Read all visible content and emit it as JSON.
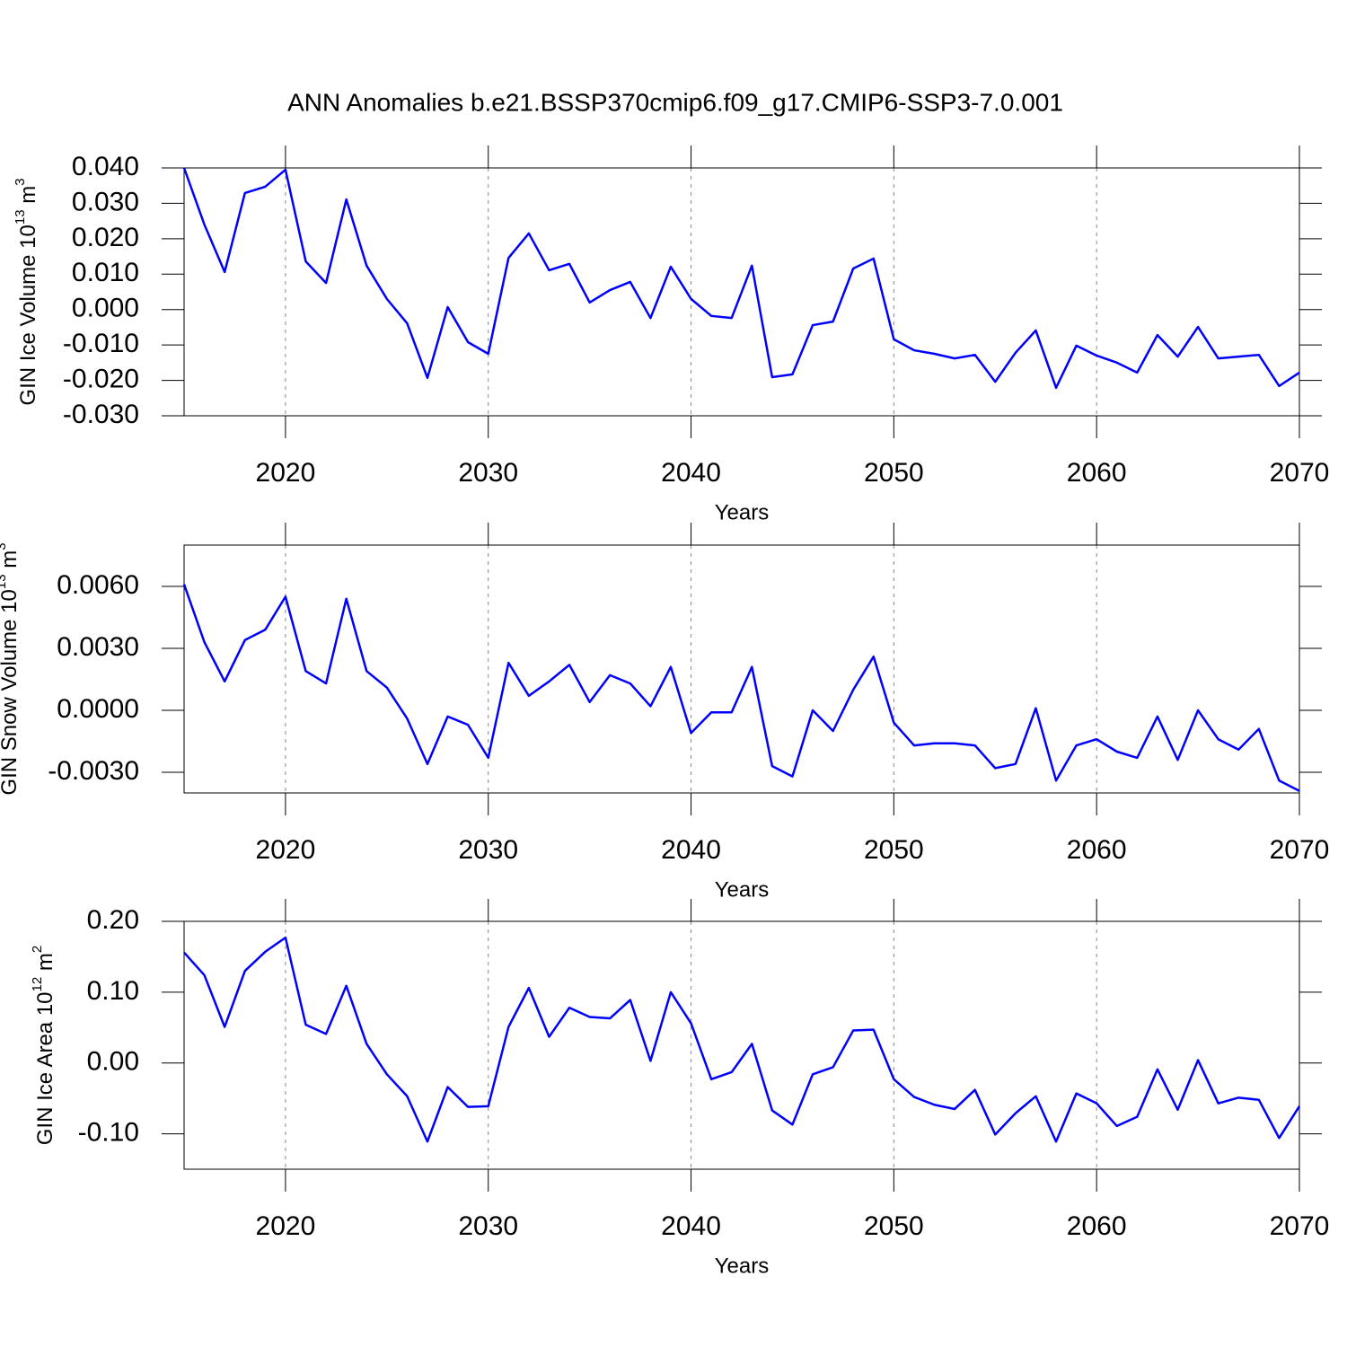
{
  "title": "ANN Anomalies b.e21.BSSP370cmip6.f09_g17.CMIP6-SSP3-7.0.001",
  "chart_data": [
    {
      "type": "line",
      "ylabel": [
        "GIN Ice Volume 10",
        "13",
        " m",
        "3"
      ],
      "xlabel": "Years",
      "color": "#0000ff",
      "grid": true,
      "x": [
        2015,
        2016,
        2017,
        2018,
        2019,
        2020,
        2021,
        2022,
        2023,
        2024,
        2025,
        2026,
        2027,
        2028,
        2029,
        2030,
        2031,
        2032,
        2033,
        2034,
        2035,
        2036,
        2037,
        2038,
        2039,
        2040,
        2041,
        2042,
        2043,
        2044,
        2045,
        2046,
        2047,
        2048,
        2049,
        2050,
        2051,
        2052,
        2053,
        2054,
        2055,
        2056,
        2057,
        2058,
        2059,
        2060,
        2061,
        2062,
        2063,
        2064,
        2065,
        2066,
        2067,
        2068,
        2069,
        2070
      ],
      "values": [
        0.04,
        0.024,
        0.0106,
        0.0329,
        0.0347,
        0.0395,
        0.0136,
        0.0075,
        0.0311,
        0.0124,
        0.003,
        -0.0039,
        -0.0193,
        0.0007,
        -0.0092,
        -0.0125,
        0.0146,
        0.0215,
        0.0111,
        0.0129,
        0.002,
        0.0055,
        0.0078,
        -0.0024,
        0.0121,
        0.003,
        -0.0018,
        -0.0024,
        0.0124,
        -0.0191,
        -0.0183,
        -0.0044,
        -0.0034,
        0.0116,
        0.0144,
        -0.0084,
        -0.0115,
        -0.0125,
        -0.0138,
        -0.0128,
        -0.0204,
        -0.0122,
        -0.0059,
        -0.0221,
        -0.0102,
        -0.013,
        -0.015,
        -0.0178,
        -0.0072,
        -0.0133,
        -0.0049,
        -0.0138,
        -0.0133,
        -0.0128,
        -0.0216,
        -0.0178
      ],
      "xlim": [
        2015,
        2070
      ],
      "xticks": [
        2020,
        2030,
        2040,
        2050,
        2060,
        2070
      ],
      "ylim": [
        -0.03,
        0.04
      ],
      "yticks": [
        {
          "value": 0.04,
          "label": "0.040"
        },
        {
          "value": 0.03,
          "label": "0.030"
        },
        {
          "value": 0.02,
          "label": "0.020"
        },
        {
          "value": 0.01,
          "label": "0.010"
        },
        {
          "value": 0,
          "label": "0.000"
        },
        {
          "value": -0.01,
          "label": "-0.010"
        },
        {
          "value": -0.02,
          "label": "-0.020"
        },
        {
          "value": -0.03,
          "label": "-0.030"
        }
      ]
    },
    {
      "type": "line",
      "ylabel": [
        "GIN Snow Volume 10",
        "13",
        " m",
        "3"
      ],
      "xlabel": "Years",
      "color": "#0000ff",
      "grid": true,
      "x": [
        2015,
        2016,
        2017,
        2018,
        2019,
        2020,
        2021,
        2022,
        2023,
        2024,
        2025,
        2026,
        2027,
        2028,
        2029,
        2030,
        2031,
        2032,
        2033,
        2034,
        2035,
        2036,
        2037,
        2038,
        2039,
        2040,
        2041,
        2042,
        2043,
        2044,
        2045,
        2046,
        2047,
        2048,
        2049,
        2050,
        2051,
        2052,
        2053,
        2054,
        2055,
        2056,
        2057,
        2058,
        2059,
        2060,
        2061,
        2062,
        2063,
        2064,
        2065,
        2066,
        2067,
        2068,
        2069,
        2070
      ],
      "values": [
        0.0061,
        0.0033,
        0.0014,
        0.0034,
        0.0039,
        0.0055,
        0.0019,
        0.0013,
        0.0054,
        0.0019,
        0.0011,
        -0.0004,
        -0.0026,
        -0.0003,
        -0.0007,
        -0.0023,
        0.0023,
        0.0007,
        0.0014,
        0.0022,
        0.0004,
        0.0017,
        0.0013,
        0.0002,
        0.0021,
        -0.0011,
        -0.0001,
        -0.0001,
        0.0021,
        -0.0027,
        -0.0032,
        0,
        -0.001,
        0.001,
        0.0026,
        -0.0006,
        -0.0017,
        -0.0016,
        -0.0016,
        -0.0017,
        -0.0028,
        -0.0026,
        0.0001,
        -0.0034,
        -0.0017,
        -0.0014,
        -0.002,
        -0.0023,
        -0.0003,
        -0.0024,
        0,
        -0.0014,
        -0.0019,
        -0.0009,
        -0.0034,
        -0.0039
      ],
      "xlim": [
        2015,
        2070
      ],
      "xticks": [
        2020,
        2030,
        2040,
        2050,
        2060,
        2070
      ],
      "ylim": [
        -0.004,
        0.008
      ],
      "yticks": [
        {
          "value": 0.006,
          "label": "0.0060"
        },
        {
          "value": 0.003,
          "label": "0.0030"
        },
        {
          "value": 0,
          "label": "0.0000"
        },
        {
          "value": -0.003,
          "label": "-0.0030"
        }
      ]
    },
    {
      "type": "line",
      "ylabel": [
        "GIN Ice Area 10",
        "12",
        " m",
        "2"
      ],
      "xlabel": "Years",
      "color": "#0000ff",
      "grid": true,
      "x": [
        2015,
        2016,
        2017,
        2018,
        2019,
        2020,
        2021,
        2022,
        2023,
        2024,
        2025,
        2026,
        2027,
        2028,
        2029,
        2030,
        2031,
        2032,
        2033,
        2034,
        2035,
        2036,
        2037,
        2038,
        2039,
        2040,
        2041,
        2042,
        2043,
        2044,
        2045,
        2046,
        2047,
        2048,
        2049,
        2050,
        2051,
        2052,
        2053,
        2054,
        2055,
        2056,
        2057,
        2058,
        2059,
        2060,
        2061,
        2062,
        2063,
        2064,
        2065,
        2066,
        2067,
        2068,
        2069,
        2070
      ],
      "values": [
        0.156,
        0.124,
        0.051,
        0.13,
        0.157,
        0.177,
        0.054,
        0.041,
        0.109,
        0.027,
        -0.016,
        -0.047,
        -0.111,
        -0.034,
        -0.062,
        -0.061,
        0.051,
        0.106,
        0.037,
        0.078,
        0.065,
        0.063,
        0.089,
        0.003,
        0.1,
        0.056,
        -0.023,
        -0.013,
        0.027,
        -0.067,
        -0.087,
        -0.016,
        -0.006,
        0.046,
        0.047,
        -0.023,
        -0.048,
        -0.059,
        -0.065,
        -0.038,
        -0.101,
        -0.071,
        -0.047,
        -0.111,
        -0.043,
        -0.057,
        -0.089,
        -0.076,
        -0.009,
        -0.066,
        0.004,
        -0.057,
        -0.049,
        -0.052,
        -0.106,
        -0.061
      ],
      "xlim": [
        2015,
        2070
      ],
      "xticks": [
        2020,
        2030,
        2040,
        2050,
        2060,
        2070
      ],
      "ylim": [
        -0.15,
        0.2
      ],
      "yticks": [
        {
          "value": 0.2,
          "label": "0.20"
        },
        {
          "value": 0.1,
          "label": "0.10"
        },
        {
          "value": 0,
          "label": "0.00"
        },
        {
          "value": -0.1,
          "label": "-0.10"
        }
      ]
    }
  ]
}
